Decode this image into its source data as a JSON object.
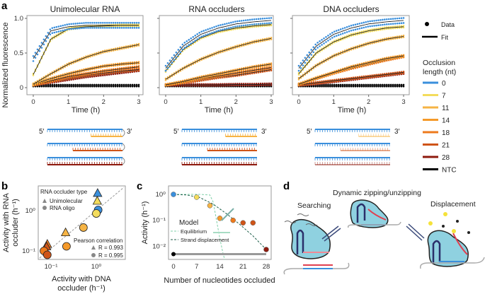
{
  "panel_labels": {
    "a": "a",
    "b": "b",
    "c": "c",
    "d": "d"
  },
  "colors": {
    "0": "#3a8fdc",
    "7": "#f3dc5c",
    "11": "#f6b445",
    "14": "#f59a2a",
    "18": "#ee7a1c",
    "21": "#cf5418",
    "28": "#8e1a0e",
    "NTC": "#000000"
  },
  "legend": {
    "data": "Data",
    "fit": "Fit",
    "title_line1": "Occlusion",
    "title_line2": "length (nt)",
    "entries": [
      "0",
      "7",
      "11",
      "14",
      "18",
      "21",
      "28",
      "NTC"
    ]
  },
  "diagrams": {
    "five_prime": "5′",
    "three_prime": "3′"
  },
  "chart_data": [
    {
      "type": "line",
      "panel": "a",
      "title": "Unimolecular RNA",
      "xlabel": "Time (h)",
      "ylabel": "Normalized fluorescence",
      "xlim": [
        0,
        3
      ],
      "ylim": [
        0,
        1.0
      ],
      "xticks": [
        "0",
        "1",
        "2",
        "3"
      ],
      "yticks": [
        "0",
        "0.5",
        "1.0"
      ],
      "x": [
        0,
        0.5,
        1,
        1.5,
        2,
        2.5,
        3
      ],
      "series": [
        {
          "name": "0",
          "values": [
            0.42,
            0.82,
            0.88,
            0.9,
            0.9,
            0.9,
            0.9
          ]
        },
        {
          "name": "7",
          "values": [
            0.19,
            0.7,
            0.85,
            0.88,
            0.89,
            0.9,
            0.9
          ]
        },
        {
          "name": "11",
          "values": [
            0.05,
            0.2,
            0.34,
            0.44,
            0.52,
            0.57,
            0.62
          ]
        },
        {
          "name": "14",
          "values": [
            0.05,
            0.13,
            0.2,
            0.26,
            0.31,
            0.34,
            0.36
          ]
        },
        {
          "name": "18",
          "values": [
            0.04,
            0.1,
            0.16,
            0.2,
            0.24,
            0.27,
            0.3
          ]
        },
        {
          "name": "21",
          "values": [
            0.04,
            0.09,
            0.14,
            0.18,
            0.21,
            0.24,
            0.26
          ]
        },
        {
          "name": "28",
          "values": [
            0.04,
            0.08,
            0.12,
            0.16,
            0.19,
            0.22,
            0.25
          ]
        },
        {
          "name": "NTC",
          "values": [
            0.03,
            0.03,
            0.03,
            0.03,
            0.03,
            0.03,
            0.03
          ]
        }
      ]
    },
    {
      "type": "line",
      "panel": "a",
      "title": "RNA occluders",
      "xlabel": "Time (h)",
      "xlim": [
        0,
        3
      ],
      "ylim": [
        0,
        1.0
      ],
      "xticks": [
        "0",
        "1",
        "2",
        "3"
      ],
      "x": [
        0,
        0.5,
        1,
        1.5,
        2,
        2.5,
        3
      ],
      "series": [
        {
          "name": "0",
          "values": [
            0.28,
            0.6,
            0.77,
            0.86,
            0.92,
            0.95,
            0.97
          ]
        },
        {
          "name": "7",
          "values": [
            0.24,
            0.55,
            0.72,
            0.81,
            0.86,
            0.89,
            0.91
          ]
        },
        {
          "name": "11",
          "values": [
            0.12,
            0.28,
            0.41,
            0.51,
            0.59,
            0.66,
            0.71
          ]
        },
        {
          "name": "14",
          "values": [
            0.04,
            0.09,
            0.15,
            0.2,
            0.25,
            0.3,
            0.34
          ]
        },
        {
          "name": "18",
          "values": [
            0.04,
            0.08,
            0.13,
            0.17,
            0.21,
            0.25,
            0.29
          ]
        },
        {
          "name": "21",
          "values": [
            0.04,
            0.07,
            0.11,
            0.15,
            0.18,
            0.22,
            0.26
          ]
        },
        {
          "name": "28",
          "values": [
            0.04,
            0.04,
            0.04,
            0.04,
            0.045,
            0.045,
            0.05
          ]
        },
        {
          "name": "NTC",
          "values": [
            0.03,
            0.03,
            0.03,
            0.03,
            0.03,
            0.03,
            0.03
          ]
        }
      ]
    },
    {
      "type": "line",
      "panel": "a",
      "title": "DNA occluders",
      "xlabel": "Time (h)",
      "xlim": [
        0,
        3
      ],
      "ylim": [
        0,
        1.0
      ],
      "xticks": [
        "0",
        "1",
        "2",
        "3"
      ],
      "x": [
        0,
        0.5,
        1,
        1.5,
        2,
        2.5,
        3
      ],
      "series": [
        {
          "name": "0",
          "values": [
            0.28,
            0.6,
            0.77,
            0.86,
            0.92,
            0.95,
            0.97
          ]
        },
        {
          "name": "7",
          "values": [
            0.2,
            0.5,
            0.66,
            0.76,
            0.82,
            0.86,
            0.88
          ]
        },
        {
          "name": "11",
          "values": [
            0.13,
            0.32,
            0.46,
            0.56,
            0.64,
            0.7,
            0.74
          ]
        },
        {
          "name": "14",
          "values": [
            0.05,
            0.14,
            0.22,
            0.3,
            0.36,
            0.42,
            0.46
          ]
        },
        {
          "name": "18",
          "values": [
            0.05,
            0.13,
            0.21,
            0.28,
            0.34,
            0.4,
            0.45
          ]
        },
        {
          "name": "21",
          "values": [
            0.04,
            0.07,
            0.1,
            0.13,
            0.16,
            0.19,
            0.22
          ]
        },
        {
          "name": "28",
          "values": [
            0.04,
            0.06,
            0.09,
            0.12,
            0.15,
            0.18,
            0.21
          ]
        },
        {
          "name": "NTC",
          "values": [
            0.03,
            0.03,
            0.03,
            0.03,
            0.03,
            0.03,
            0.03
          ]
        }
      ]
    },
    {
      "type": "scatter",
      "panel": "b",
      "xlabel_line1": "Activity with DNA",
      "xlabel_line2": "occluder (h⁻¹)",
      "ylabel_line1": "Activity with RNA",
      "ylabel_line2": "occluder (h⁻¹)",
      "xscale": "log",
      "yscale": "log",
      "xlim": [
        0.06,
        3.5
      ],
      "ylim": [
        0.06,
        4
      ],
      "xticks": [
        "10⁻¹",
        "10⁰"
      ],
      "yticks": [
        "10⁻¹",
        "10⁰"
      ],
      "legend_title": "RNA occluder type",
      "legend_items": [
        "Unimolecular",
        "RNA oligo"
      ],
      "correlation_title": "Pearson correlation",
      "correlation": [
        {
          "marker": "triangle",
          "label": "R = 0.993"
        },
        {
          "marker": "circle",
          "label": "R = 0.995"
        }
      ],
      "points": [
        {
          "series": "0",
          "marker": "triangle",
          "x": 1.07,
          "y": 2.75
        },
        {
          "series": "7",
          "marker": "triangle",
          "x": 1.05,
          "y": 1.76
        },
        {
          "series": "0",
          "marker": "circle",
          "x": 1.1,
          "y": 1.04
        },
        {
          "series": "7",
          "marker": "circle",
          "x": 1.0,
          "y": 0.85
        },
        {
          "series": "11",
          "marker": "triangle",
          "x": 0.21,
          "y": 0.29
        },
        {
          "series": "11",
          "marker": "circle",
          "x": 0.52,
          "y": 0.38
        },
        {
          "series": "14",
          "marker": "circle",
          "x": 0.22,
          "y": 0.13
        },
        {
          "series": "18",
          "marker": "triangle",
          "x": 0.083,
          "y": 0.15
        },
        {
          "series": "21",
          "marker": "triangle",
          "x": 0.08,
          "y": 0.13
        },
        {
          "series": "18",
          "marker": "circle",
          "x": 0.07,
          "y": 0.1
        },
        {
          "series": "21",
          "marker": "circle",
          "x": 0.083,
          "y": 0.08
        }
      ]
    },
    {
      "type": "scatter",
      "panel": "c",
      "xlabel": "Number of nucleotides occluded",
      "ylabel": "Activity (h⁻¹)",
      "yscale": "log",
      "xlim": [
        0,
        28
      ],
      "ylim": [
        0.003,
        2
      ],
      "xticks": [
        "0",
        "7",
        "14",
        "21",
        "28"
      ],
      "yticks": [
        "10⁰",
        "10⁻¹",
        "10⁻²"
      ],
      "legend_title": "Model",
      "model_names": [
        "Equilibrium",
        "Strand displacement"
      ],
      "points": [
        {
          "series": "0",
          "x": 0,
          "y": 1.0
        },
        {
          "series": "7",
          "x": 7,
          "y": 0.78
        },
        {
          "series": "11",
          "x": 11,
          "y": 0.37
        },
        {
          "series": "14",
          "x": 14,
          "y": 0.12
        },
        {
          "series": "18",
          "x": 18,
          "y": 0.1
        },
        {
          "series": "21",
          "x": 21,
          "y": 0.08
        },
        {
          "series": "21",
          "x": 24,
          "y": 0.08
        },
        {
          "series": "28",
          "x": 28,
          "y": 0.0075
        }
      ],
      "ntc": 0.005,
      "equilibrium": {
        "x": [
          0,
          8,
          11,
          12,
          13,
          14,
          15,
          15.5
        ],
        "y": [
          1.0,
          1.0,
          0.95,
          0.5,
          0.1,
          0.02,
          0.005,
          0.003
        ]
      },
      "strand_displacement": {
        "x": [
          0,
          4,
          8,
          12,
          16,
          20,
          24,
          28
        ],
        "y": [
          1.0,
          0.95,
          0.75,
          0.42,
          0.18,
          0.07,
          0.025,
          0.0075
        ]
      }
    }
  ],
  "panel_d": {
    "searching": "Searching",
    "zipping": "Dynamic zipping/unzipping",
    "displacement": "Displacement"
  }
}
